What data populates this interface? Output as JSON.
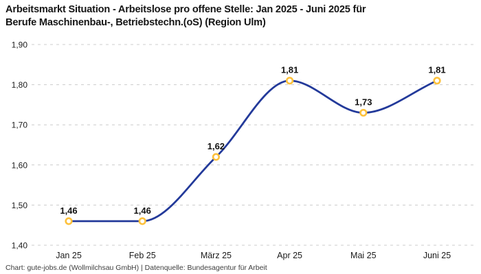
{
  "header": {
    "title_line1": "Arbeitsmarkt Situation - Arbeitslose pro offene Stelle: Jan 2025 - Juni 2025 für",
    "title_line2": "Berufe Maschinenbau-, Betriebstechn.(oS) (Region Ulm)"
  },
  "footer": {
    "credit": "Chart: gute-jobs.de (Wollmilchsau GmbH) | Datenquelle: Bundesagentur für Arbeit"
  },
  "chart_data": {
    "type": "line",
    "title": "Arbeitsmarkt Situation - Arbeitslose pro offene Stelle: Jan 2025 - Juni 2025 für Berufe Maschinenbau-, Betriebstechn.(oS) (Region Ulm)",
    "categories": [
      "Jan 25",
      "Feb 25",
      "März 25",
      "Apr 25",
      "Mai 25",
      "Juni 25"
    ],
    "values": [
      1.46,
      1.46,
      1.62,
      1.81,
      1.73,
      1.81
    ],
    "value_labels": [
      "1,46",
      "1,46",
      "1,62",
      "1,81",
      "1,73",
      "1,81"
    ],
    "y_ticks": [
      1.4,
      1.5,
      1.6,
      1.7,
      1.8,
      1.9
    ],
    "y_tick_labels": [
      "1,40",
      "1,50",
      "1,60",
      "1,70",
      "1,80",
      "1,90"
    ],
    "ylim": [
      1.4,
      1.9
    ],
    "xlabel": "",
    "ylabel": "",
    "grid": "horizontal-dashed",
    "legend": "none",
    "interpolation": "monotone-smooth",
    "colors": {
      "line": "#233a9a",
      "marker_stroke": "#fdc13c",
      "marker_fill": "#ffffff",
      "grid": "#cccccc",
      "text": "#1a1a1a"
    }
  }
}
